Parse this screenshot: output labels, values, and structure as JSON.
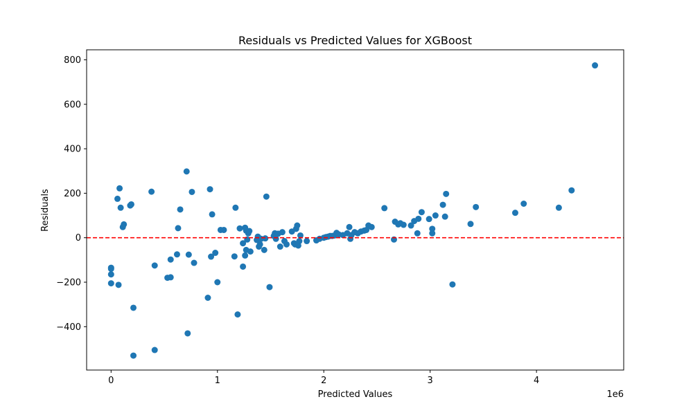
{
  "chart_data": {
    "type": "scatter",
    "title": "Residuals vs Predicted Values for XGBoost",
    "xlabel": "Predicted Values",
    "ylabel": "Residuals",
    "x_offset_label": "1e6",
    "xlim": [
      -230000,
      4820000
    ],
    "ylim": [
      -595,
      845
    ],
    "xticks": [
      0,
      1000000,
      2000000,
      3000000,
      4000000
    ],
    "xtick_labels": [
      "0",
      "1",
      "2",
      "3",
      "4"
    ],
    "yticks": [
      -400,
      -200,
      0,
      200,
      400,
      600,
      800
    ],
    "ytick_labels": [
      "−400",
      "−200",
      "0",
      "200",
      "400",
      "600",
      "800"
    ],
    "grid": false,
    "reference_line": {
      "y": 0,
      "style": "dashed",
      "color": "#ff0000"
    },
    "marker_color": "#1f77b4",
    "series": [
      {
        "points": [
          [
            0,
            -135
          ],
          [
            0,
            -140
          ],
          [
            0,
            -165
          ],
          [
            0,
            -205
          ],
          [
            60000,
            175
          ],
          [
            70000,
            -212
          ],
          [
            80000,
            222
          ],
          [
            90000,
            135
          ],
          [
            110000,
            48
          ],
          [
            120000,
            60
          ],
          [
            180000,
            145
          ],
          [
            190000,
            150
          ],
          [
            210000,
            -315
          ],
          [
            210000,
            -530
          ],
          [
            380000,
            207
          ],
          [
            410000,
            -505
          ],
          [
            410000,
            -125
          ],
          [
            530000,
            -180
          ],
          [
            560000,
            -178
          ],
          [
            560000,
            -98
          ],
          [
            620000,
            -75
          ],
          [
            630000,
            43
          ],
          [
            650000,
            127
          ],
          [
            710000,
            298
          ],
          [
            720000,
            -430
          ],
          [
            730000,
            -76
          ],
          [
            760000,
            206
          ],
          [
            780000,
            -113
          ],
          [
            910000,
            -270
          ],
          [
            930000,
            218
          ],
          [
            940000,
            -85
          ],
          [
            950000,
            105
          ],
          [
            980000,
            -68
          ],
          [
            1000000,
            -200
          ],
          [
            1030000,
            35
          ],
          [
            1060000,
            35
          ],
          [
            1160000,
            -84
          ],
          [
            1170000,
            135
          ],
          [
            1190000,
            -345
          ],
          [
            1210000,
            42
          ],
          [
            1240000,
            -130
          ],
          [
            1240000,
            -25
          ],
          [
            1260000,
            -80
          ],
          [
            1260000,
            45
          ],
          [
            1270000,
            32
          ],
          [
            1270000,
            -55
          ],
          [
            1280000,
            -8
          ],
          [
            1290000,
            20
          ],
          [
            1300000,
            30
          ],
          [
            1310000,
            -62
          ],
          [
            1370000,
            -10
          ],
          [
            1380000,
            5
          ],
          [
            1390000,
            -40
          ],
          [
            1400000,
            -30
          ],
          [
            1410000,
            -5
          ],
          [
            1440000,
            -55
          ],
          [
            1450000,
            -3
          ],
          [
            1460000,
            185
          ],
          [
            1490000,
            -222
          ],
          [
            1530000,
            8
          ],
          [
            1540000,
            20
          ],
          [
            1550000,
            -5
          ],
          [
            1570000,
            18
          ],
          [
            1590000,
            -40
          ],
          [
            1610000,
            25
          ],
          [
            1630000,
            -15
          ],
          [
            1650000,
            -30
          ],
          [
            1700000,
            28
          ],
          [
            1720000,
            -25
          ],
          [
            1730000,
            -30
          ],
          [
            1740000,
            40
          ],
          [
            1750000,
            55
          ],
          [
            1760000,
            -35
          ],
          [
            1770000,
            -15
          ],
          [
            1780000,
            10
          ],
          [
            1840000,
            -15
          ],
          [
            1930000,
            -12
          ],
          [
            1960000,
            -5
          ],
          [
            2000000,
            0
          ],
          [
            2020000,
            3
          ],
          [
            2040000,
            5
          ],
          [
            2060000,
            8
          ],
          [
            2080000,
            8
          ],
          [
            2100000,
            10
          ],
          [
            2120000,
            22
          ],
          [
            2140000,
            15
          ],
          [
            2180000,
            12
          ],
          [
            2220000,
            20
          ],
          [
            2240000,
            48
          ],
          [
            2250000,
            -5
          ],
          [
            2260000,
            12
          ],
          [
            2290000,
            25
          ],
          [
            2320000,
            20
          ],
          [
            2350000,
            28
          ],
          [
            2380000,
            32
          ],
          [
            2400000,
            35
          ],
          [
            2420000,
            55
          ],
          [
            2450000,
            48
          ],
          [
            2570000,
            133
          ],
          [
            2660000,
            -8
          ],
          [
            2670000,
            72
          ],
          [
            2700000,
            60
          ],
          [
            2720000,
            65
          ],
          [
            2750000,
            58
          ],
          [
            2820000,
            55
          ],
          [
            2850000,
            75
          ],
          [
            2880000,
            20
          ],
          [
            2890000,
            85
          ],
          [
            2920000,
            115
          ],
          [
            2990000,
            84
          ],
          [
            3020000,
            20
          ],
          [
            3020000,
            40
          ],
          [
            3050000,
            100
          ],
          [
            3120000,
            148
          ],
          [
            3140000,
            95
          ],
          [
            3150000,
            197
          ],
          [
            3210000,
            -210
          ],
          [
            3380000,
            62
          ],
          [
            3430000,
            138
          ],
          [
            3800000,
            112
          ],
          [
            3880000,
            153
          ],
          [
            4210000,
            135
          ],
          [
            4330000,
            213
          ],
          [
            4550000,
            775
          ]
        ]
      }
    ]
  }
}
